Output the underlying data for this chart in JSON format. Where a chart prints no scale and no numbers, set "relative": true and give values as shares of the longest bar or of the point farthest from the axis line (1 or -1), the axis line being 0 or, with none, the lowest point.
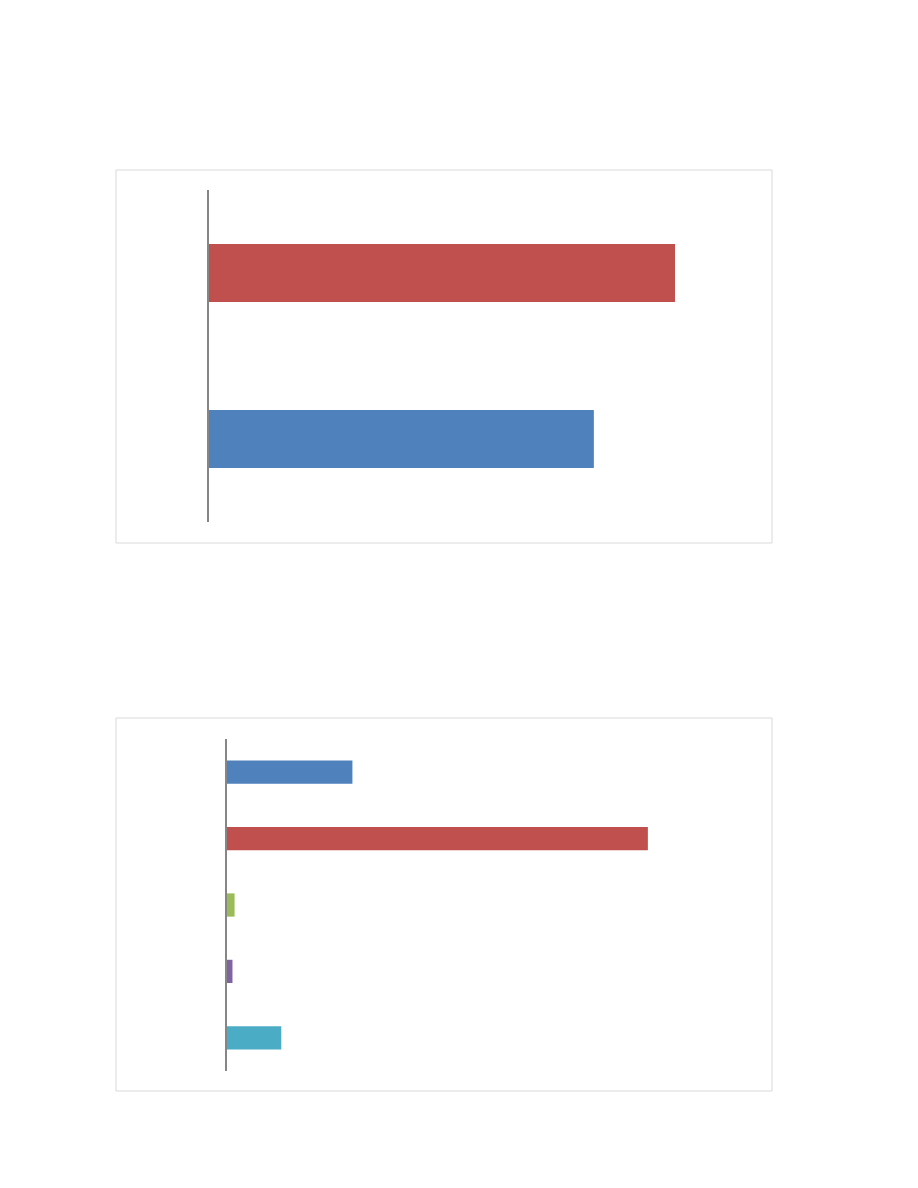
{
  "chart_data": [
    {
      "type": "bar",
      "orientation": "horizontal",
      "relative": true,
      "categories": [
        null,
        null
      ],
      "values": [
        1,
        0.826
      ],
      "colors": [
        "#c0504d",
        "#4f81bd"
      ]
    },
    {
      "type": "bar",
      "orientation": "horizontal",
      "relative": true,
      "categories": [
        null,
        null,
        null,
        null,
        null
      ],
      "values": [
        0.298,
        1,
        0.018,
        0.013,
        0.129
      ],
      "colors": [
        "#4f81bd",
        "#c0504d",
        "#9bbb59",
        "#8064a2",
        "#4bacc6"
      ]
    }
  ]
}
